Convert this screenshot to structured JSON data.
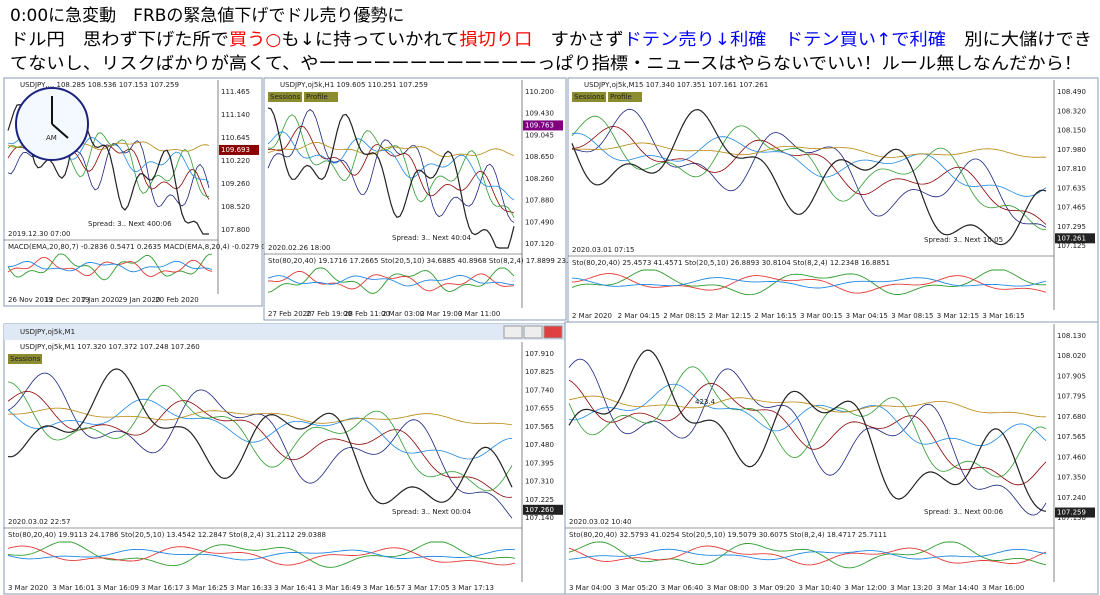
{
  "header": {
    "lines": [
      {
        "segments": [
          {
            "text": "0:00に急変動　FRBの緊急値下げでドル売り優勢に",
            "color": "#000000"
          }
        ]
      },
      {
        "segments": [
          {
            "text": "ドル円　思わず下げた所で",
            "color": "#000000"
          },
          {
            "text": "買う○",
            "color": "#ff0000"
          },
          {
            "text": "も↓に持っていかれて",
            "color": "#000000"
          },
          {
            "text": "損切り口",
            "color": "#ff0000"
          },
          {
            "text": "　すかさず",
            "color": "#000000"
          },
          {
            "text": "ドテン売り↓利確　ドテン買い↑で利確",
            "color": "#0000ff"
          },
          {
            "text": "　別に大儲けでき",
            "color": "#000000"
          }
        ]
      },
      {
        "segments": [
          {
            "text": "てないし、リスクばかりが高くて、やーーーーーーーーーーーーっぱり指標・ニュースはやらないでいい！ルール無しなんだから！",
            "color": "#000000"
          }
        ]
      }
    ]
  },
  "panels": [
    {
      "title": "USDJPY,... 108.285 108.536 107.153 107.259",
      "clock_label": "AM",
      "price_labels": [
        "111.465",
        "111.140",
        "110.645",
        "110.220",
        "109.260",
        "108.520",
        "107.800"
      ],
      "current_price": "109.693",
      "time_labels": [
        "26 Nov 2019",
        "12 Dec 2019",
        "7 Jan 2020",
        "29 Jan 2020",
        "20 Feb 2020"
      ],
      "spread": "Spread: 3..  Next 400:06",
      "date": "2019.12.30 07:00",
      "indicator": "MACD(EMA,20,80,7) -0.2836 0.5471 0.2635  MACD(EMA,8,20,4) -0.0279 0.2246 0.3"
    },
    {
      "title": "USDJPY,oj5k,H1 109.605 110.251 107.259",
      "buttons": [
        "Sessions",
        "Profile"
      ],
      "price_labels": [
        "110.200",
        "109.430",
        "109.045",
        "108.650",
        "108.260",
        "107.880",
        "107.490",
        "107.120"
      ],
      "current_price": "109.763",
      "time_labels": [
        "27 Feb 2020",
        "27 Feb 19:00",
        "28 Feb 11:00",
        "2 Mar 03:00",
        "2 Mar 19:00",
        "3 Mar 11:00"
      ],
      "spread": "Spread: 3..  Next 40:04",
      "date": "2020.02.26 18:00",
      "indicator": "Sto(80,20,40) 19.1716 17.2665  Sto(20,5,10) 34.6885 40.8968  Sto(8,2,4) 17.8899 23.8073"
    },
    {
      "title": "USDJPY,oj5k,M15 107.340 107.351 107.161 107.261",
      "buttons": [
        "Sessions",
        "Profile"
      ],
      "price_labels": [
        "108.490",
        "108.320",
        "108.150",
        "107.980",
        "107.810",
        "107.635",
        "107.465",
        "107.295",
        "107.125"
      ],
      "current_price": "107.261",
      "time_labels": [
        "2 Mar 2020",
        "2 Mar 04:15",
        "2 Mar 08:15",
        "2 Mar 12:15",
        "2 Mar 16:15",
        "3 Mar 00:15",
        "3 Mar 04:15",
        "3 Mar 08:15",
        "3 Mar 12:15",
        "3 Mar 16:15"
      ],
      "spread": "Spread: 3..  Next 10:05",
      "date": "2020.03.01 07:15",
      "indicator": "Sto(80,20,40) 25.4573 41.4571  Sto(20,5,10) 26.8893 30.8104  Sto(8,2,4) 12.2348 16.8851"
    },
    {
      "window_title": "USDJPY,oj5k,M1",
      "title": "USDJPY,oj5k,M1  107.320 107.372 107.248 107.260",
      "buttons": [
        "Sessions"
      ],
      "price_labels": [
        "107.910",
        "107.825",
        "107.740",
        "107.655",
        "107.565",
        "107.480",
        "107.395",
        "107.310",
        "107.225",
        "107.140"
      ],
      "current_price": "107.260",
      "time_labels": [
        "3 Mar 2020",
        "3 Mar 16:01",
        "3 Mar 16:09",
        "3 Mar 16:17",
        "3 Mar 16:25",
        "3 Mar 16:33",
        "3 Mar 16:41",
        "3 Mar 16:49",
        "3 Mar 16:57",
        "3 Mar 17:05",
        "3 Mar 17:13"
      ],
      "spread": "Spread: 3..  Next 00:04",
      "date": "2020.03.02 22:57",
      "indicator": "Sto(80,20,40) 19.9113 24.1786  Sto(20,5,10) 13.4542 12.2847  Sto(8,2,4) 31.2112 29.0388"
    },
    {
      "price_labels": [
        "108.130",
        "108.020",
        "107.905",
        "107.795",
        "107.680",
        "107.565",
        "107.460",
        "107.350",
        "107.240",
        "107.130"
      ],
      "current_price": "107.259",
      "note": "423.4",
      "time_labels": [
        "3 Mar 04:00",
        "3 Mar 05:20",
        "3 Mar 06:40",
        "3 Mar 08:00",
        "3 Mar 09:20",
        "3 Mar 10:40",
        "3 Mar 12:00",
        "3 Mar 13:20",
        "3 Mar 14:40",
        "3 Mar 16:00"
      ],
      "spread": "Spread: 3..  Next 00:06",
      "date": "2020.03.02 10:40",
      "indicator": "Sto(80,20,40) 32.5793 41.0254  Sto(20,5,10) 19.5079 30.6075  Sto(8,2,4) 18.4717 25.7111"
    }
  ]
}
